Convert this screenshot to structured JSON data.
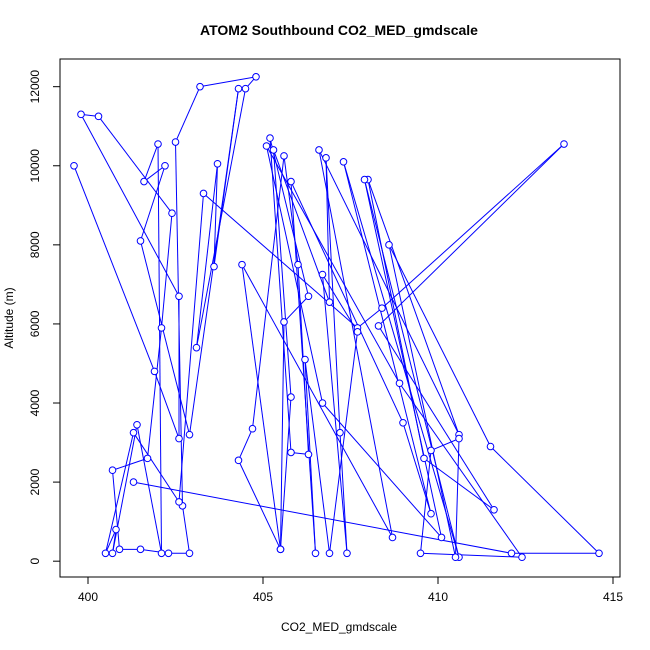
{
  "chart_data": {
    "type": "scatter",
    "title": "ATOM2 Southbound CO2_MED_gmdscale",
    "xlabel": "CO2_MED_gmdscale",
    "ylabel": "Altitude (m)",
    "xlim": [
      399.2,
      615.0
    ],
    "xlim_plot": [
      399.2,
      415.2
    ],
    "ylim": [
      -400,
      12700
    ],
    "xticks": [
      400,
      405,
      410,
      415
    ],
    "yticks": [
      0,
      2000,
      4000,
      6000,
      8000,
      10000,
      12000
    ],
    "grid": false,
    "legend": "none",
    "series_color": "#0000ff",
    "markers": "open-circle",
    "connected": true,
    "points": [
      [
        399.6,
        10000
      ],
      [
        401.9,
        4800
      ],
      [
        402.6,
        3100
      ],
      [
        402.6,
        6700
      ],
      [
        399.8,
        11300
      ],
      [
        400.3,
        11250
      ],
      [
        402.4,
        8800
      ],
      [
        402.1,
        5900
      ],
      [
        401.7,
        2600
      ],
      [
        400.7,
        2300
      ],
      [
        400.9,
        300
      ],
      [
        401.5,
        300
      ],
      [
        402.3,
        200
      ],
      [
        402.9,
        200
      ],
      [
        402.7,
        1400
      ],
      [
        402.5,
        10600
      ],
      [
        403.2,
        12000
      ],
      [
        404.8,
        12250
      ],
      [
        404.5,
        11950
      ],
      [
        403.1,
        5400
      ],
      [
        403.7,
        10050
      ],
      [
        403.6,
        7450
      ],
      [
        404.3,
        11950
      ],
      [
        402.9,
        3200
      ],
      [
        401.5,
        8100
      ],
      [
        402.2,
        10000
      ],
      [
        401.6,
        9600
      ],
      [
        402.0,
        10550
      ],
      [
        402.1,
        200
      ],
      [
        401.4,
        3450
      ],
      [
        400.7,
        200
      ],
      [
        400.8,
        800
      ],
      [
        400.5,
        200
      ],
      [
        401.3,
        3250
      ],
      [
        402.6,
        1500
      ],
      [
        403.3,
        9300
      ],
      [
        407.7,
        5900
      ],
      [
        408.4,
        6400
      ],
      [
        413.6,
        10550
      ],
      [
        408.3,
        5950
      ],
      [
        411.6,
        1300
      ],
      [
        409.6,
        2600
      ],
      [
        408.0,
        9650
      ],
      [
        410.6,
        3200
      ],
      [
        406.6,
        10400
      ],
      [
        408.7,
        600
      ],
      [
        404.4,
        7500
      ],
      [
        405.5,
        300
      ],
      [
        405.6,
        6050
      ],
      [
        406.3,
        6700
      ],
      [
        405.2,
        10700
      ],
      [
        405.8,
        2750
      ],
      [
        406.3,
        2700
      ],
      [
        406.0,
        7500
      ],
      [
        405.6,
        10250
      ],
      [
        404.7,
        3350
      ],
      [
        404.3,
        2550
      ],
      [
        405.5,
        300
      ],
      [
        405.8,
        4150
      ],
      [
        405.3,
        10400
      ],
      [
        406.9,
        6550
      ],
      [
        406.8,
        10200
      ],
      [
        407.2,
        3250
      ],
      [
        407.4,
        200
      ],
      [
        406.7,
        7250
      ],
      [
        407.7,
        5800
      ],
      [
        406.9,
        200
      ],
      [
        406.2,
        5100
      ],
      [
        406.5,
        200
      ],
      [
        405.8,
        9600
      ],
      [
        409.0,
        3500
      ],
      [
        409.8,
        1200
      ],
      [
        407.3,
        10100
      ],
      [
        410.6,
        100
      ],
      [
        407.9,
        9650
      ],
      [
        410.1,
        600
      ],
      [
        406.7,
        4000
      ],
      [
        405.1,
        10500
      ],
      [
        408.9,
        4500
      ],
      [
        412.4,
        100
      ],
      [
        409.5,
        200
      ],
      [
        409.8,
        2800
      ],
      [
        410.6,
        3100
      ],
      [
        410.5,
        100
      ],
      [
        408.6,
        8000
      ],
      [
        411.5,
        2900
      ],
      [
        414.6,
        200
      ],
      [
        412.1,
        200
      ],
      [
        401.3,
        2000
      ]
    ]
  }
}
